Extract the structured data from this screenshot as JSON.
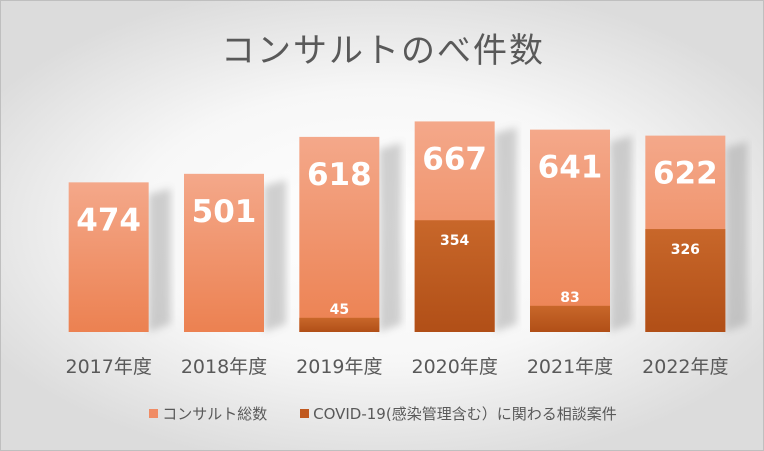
{
  "chart_data": {
    "type": "bar",
    "stacking": "overlay",
    "title": "コンサルトのべ件数",
    "categories": [
      "2017年度",
      "2018年度",
      "2019年度",
      "2020年度",
      "2021年度",
      "2022年度"
    ],
    "series": [
      {
        "name": "コンサルト総数",
        "values": [
          474,
          501,
          618,
          667,
          641,
          622
        ],
        "color": "#f08c65"
      },
      {
        "name": "COVID-19(感染管理含む）に関わる相談案件",
        "values": [
          null,
          null,
          45,
          354,
          83,
          326
        ],
        "color": "#c0591f"
      }
    ],
    "ylim": [
      0,
      700
    ],
    "grid": false,
    "legend_position": "bottom",
    "data_labels": true
  }
}
